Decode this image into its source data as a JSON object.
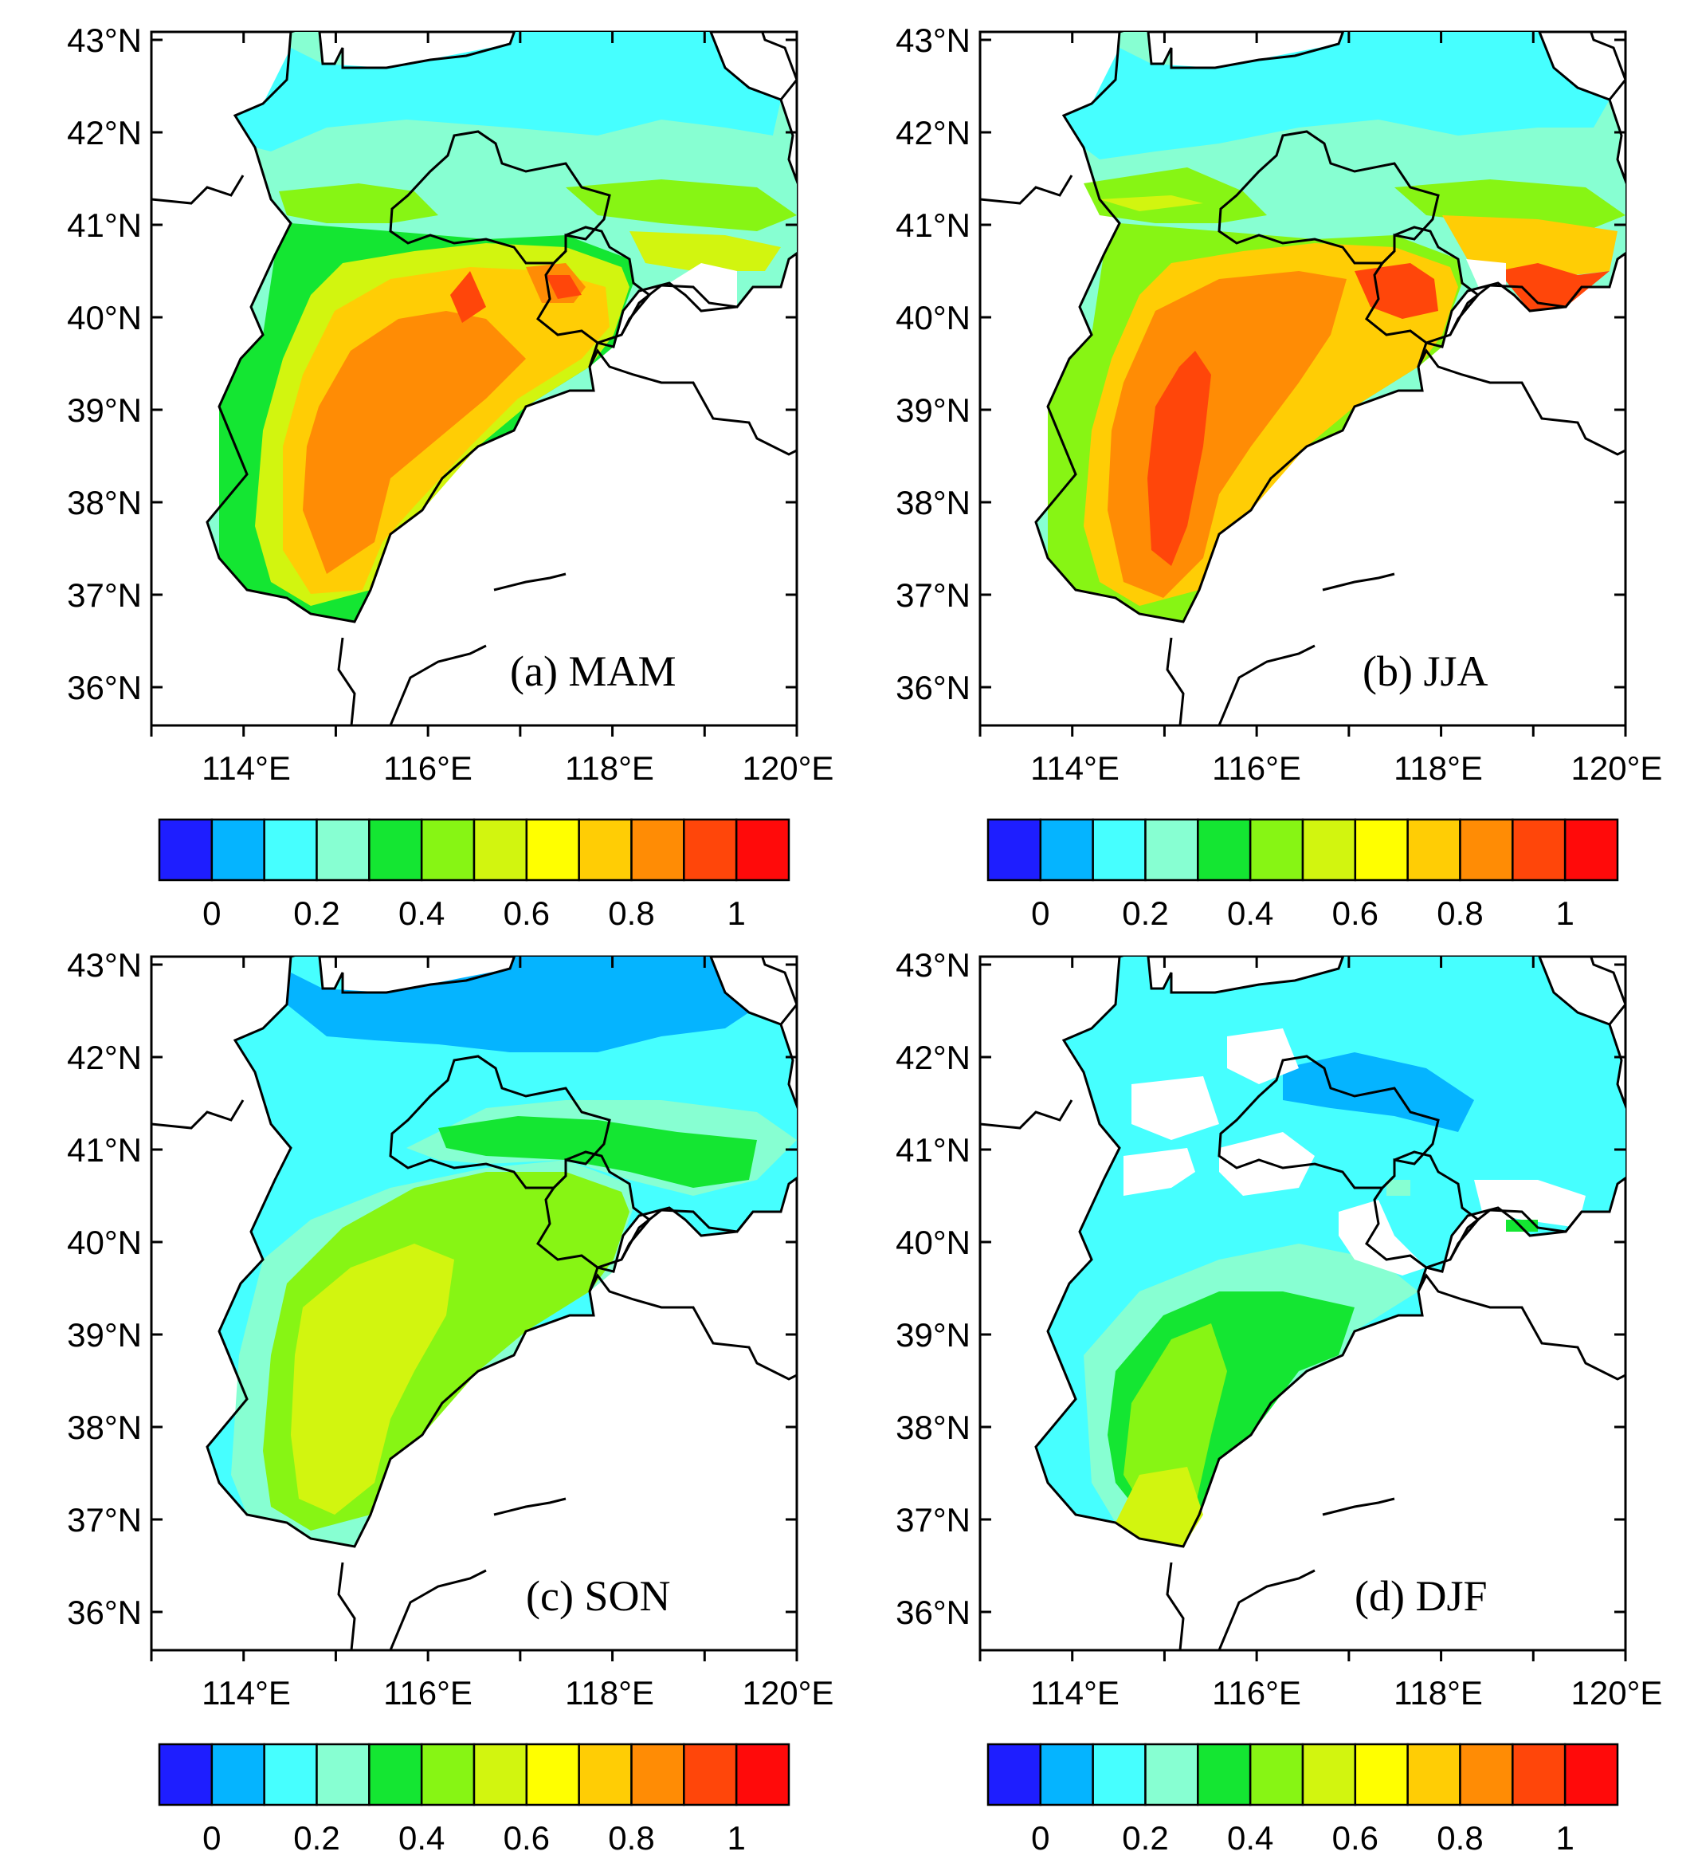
{
  "figure": {
    "panels": [
      {
        "id": "a",
        "label": "(a)  MAM"
      },
      {
        "id": "b",
        "label": "(b)  JJA"
      },
      {
        "id": "c",
        "label": "(c)  SON"
      },
      {
        "id": "d",
        "label": "(d)  DJF"
      }
    ],
    "lat_ticks": [
      "43°N",
      "42°N",
      "41°N",
      "40°N",
      "39°N",
      "38°N",
      "37°N",
      "36°N"
    ],
    "lon_ticks": [
      "114°E",
      "116°E",
      "118°E",
      "120°E"
    ],
    "colorbar": {
      "colors": [
        "#1e1eff",
        "#05b4ff",
        "#46ffff",
        "#87ffd2",
        "#14e632",
        "#87f514",
        "#d2f50f",
        "#ffff00",
        "#ffcd05",
        "#ff8c05",
        "#ff460a",
        "#ff0a0a"
      ],
      "tick_labels": [
        "0",
        "0.2",
        "0.4",
        "0.6",
        "0.8",
        "1"
      ]
    }
  }
}
